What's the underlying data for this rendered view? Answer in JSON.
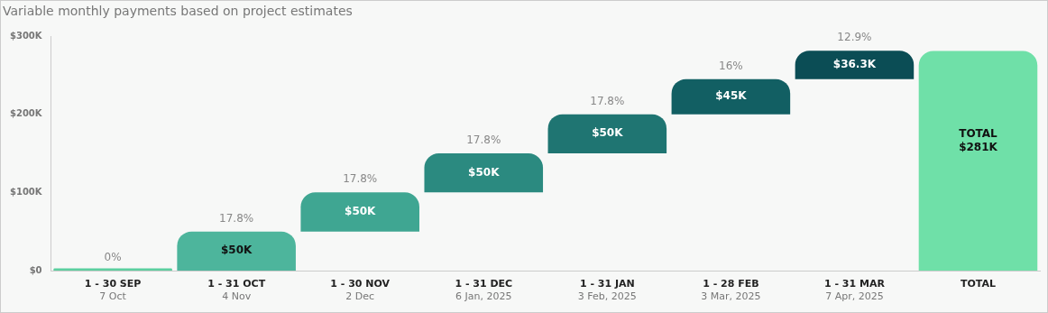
{
  "chart_data": {
    "type": "bar",
    "title": "Variable monthly payments based on project estimates",
    "categories": [
      "1 - 30 SEP\n7 Oct",
      "1 - 31 OCT\n4 Nov",
      "1 - 30 NOV\n2 Dec",
      "1 - 31 DEC\n6 Jan, 2025",
      "1 - 31 JAN\n3 Feb, 2025",
      "1 - 28 FEB\n3 Mar, 2025",
      "1 - 31 MAR\n7 Apr, 2025",
      "TOTAL"
    ],
    "values": [
      3,
      50,
      50,
      50,
      50,
      45,
      36.3,
      281
    ],
    "base": [
      0,
      0,
      50,
      100,
      150,
      200,
      245,
      0
    ],
    "colors": [
      "#5ccf9f",
      "#4db59c",
      "#3fa692",
      "#2b8a80",
      "#1f7572",
      "#125f63",
      "#0b4d55",
      "#6fe0a8"
    ],
    "value_labels": [
      null,
      "$50K",
      "$50K",
      "$50K",
      "$50K",
      "$45K",
      "$36.3K",
      "TOTAL\n$281K"
    ],
    "annotations": [
      {
        "text": "0%",
        "x": "1 - 30 SEP\n7 Oct",
        "y": 0
      },
      {
        "text": "17.8%",
        "x": "1 - 31 OCT\n4 Nov",
        "y": 50
      },
      {
        "text": "17.8%",
        "x": "1 - 30 NOV\n2 Dec",
        "y": 100
      },
      {
        "text": "17.8%",
        "x": "1 - 31 DEC\n6 Jan, 2025",
        "y": 150
      },
      {
        "text": "17.8%",
        "x": "1 - 31 JAN\n3 Feb, 2025",
        "y": 200
      },
      {
        "text": "16%",
        "x": "1 - 28 FEB\n3 Mar, 2025",
        "y": 245
      },
      {
        "text": "12.9%",
        "x": "1 - 31 MAR\n7 Apr, 2025",
        "y": 281.3
      }
    ],
    "ylim": [
      0,
      300
    ],
    "yticks": [
      {
        "value": 0,
        "label": "$0"
      },
      {
        "value": 100,
        "label": "$100K"
      },
      {
        "value": 200,
        "label": "$200K"
      },
      {
        "value": 300,
        "label": "$300K"
      }
    ],
    "grid": false,
    "legend": false
  }
}
